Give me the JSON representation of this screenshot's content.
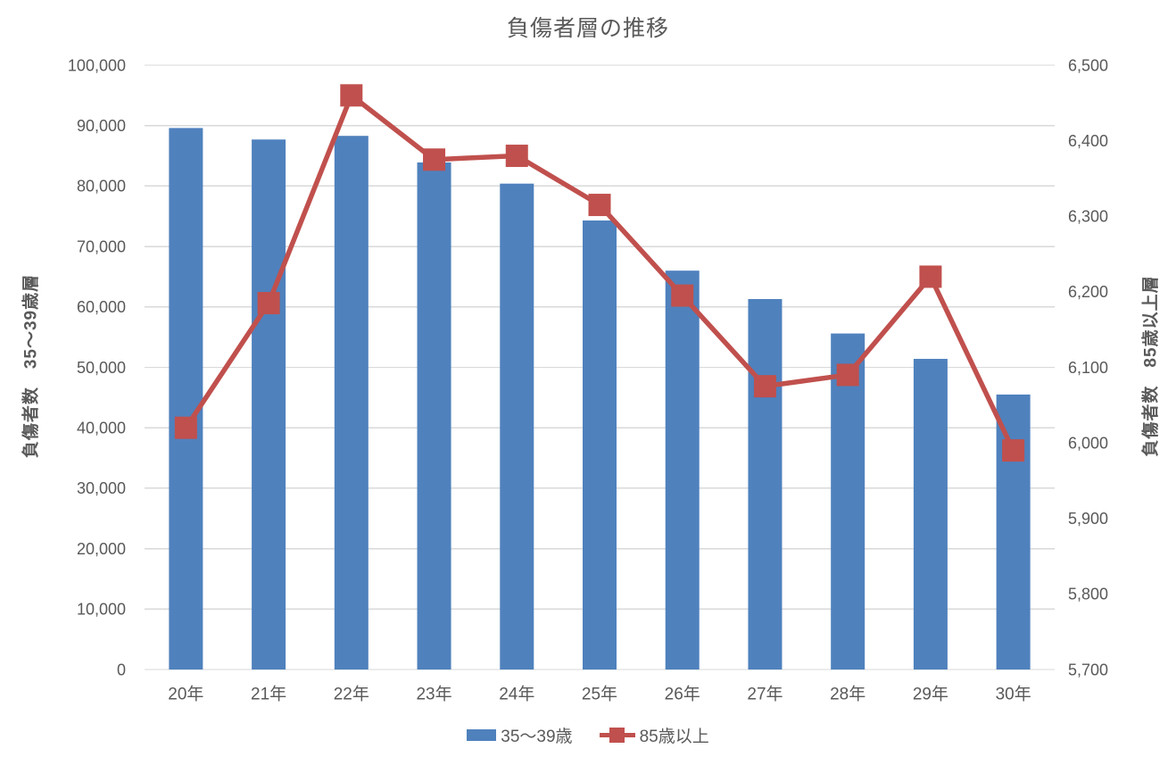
{
  "chart_data": {
    "type": "combo",
    "title": "負傷者層の推移",
    "categories": [
      "20年",
      "21年",
      "22年",
      "23年",
      "24年",
      "25年",
      "26年",
      "27年",
      "28年",
      "29年",
      "30年"
    ],
    "series": [
      {
        "name": "35～39歳",
        "type": "bar",
        "axis": "left",
        "color": "#4F81BD",
        "values": [
          89600,
          87700,
          88300,
          83900,
          80400,
          74300,
          66000,
          61300,
          55600,
          51400,
          45500
        ]
      },
      {
        "name": "85歳以上",
        "type": "line",
        "axis": "right",
        "color": "#C0504D",
        "marker": "square",
        "values": [
          6020,
          6185,
          6460,
          6375,
          6380,
          6315,
          6195,
          6075,
          6090,
          6220,
          5990
        ]
      }
    ],
    "left_axis": {
      "title": "負傷者数　35～39歳層",
      "min": 0,
      "max": 100000,
      "step": 10000
    },
    "right_axis": {
      "title": "負傷者数　85歳以上層",
      "min": 5700,
      "max": 6500,
      "step": 100
    },
    "grid": true,
    "legend_position": "bottom",
    "colors": {
      "text": "#595959",
      "gridline": "#D9D9D9",
      "background": "#FFFFFF"
    }
  }
}
